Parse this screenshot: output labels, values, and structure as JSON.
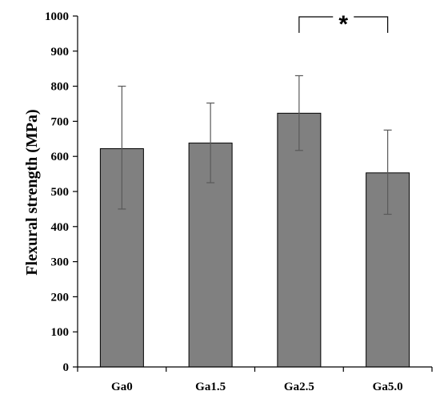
{
  "chart_data": {
    "type": "bar",
    "title": "",
    "xlabel": "",
    "ylabel": "Flexural strength (MPa)",
    "ylim": [
      0,
      1000
    ],
    "yticks": [
      0,
      100,
      200,
      300,
      400,
      500,
      600,
      700,
      800,
      900,
      1000
    ],
    "grid": false,
    "legend": "none",
    "categories": [
      "Ga0",
      "Ga1.5",
      "Ga2.5",
      "Ga5.0"
    ],
    "values": [
      622,
      638,
      723,
      553
    ],
    "error_low": [
      450,
      525,
      617,
      435
    ],
    "error_high": [
      800,
      752,
      830,
      675
    ],
    "bar_color": "#808080",
    "bar_edge_color": "#000000",
    "error_color": "#595959",
    "significance": {
      "from": "Ga2.5",
      "to": "Ga5.0",
      "label": "*"
    }
  }
}
